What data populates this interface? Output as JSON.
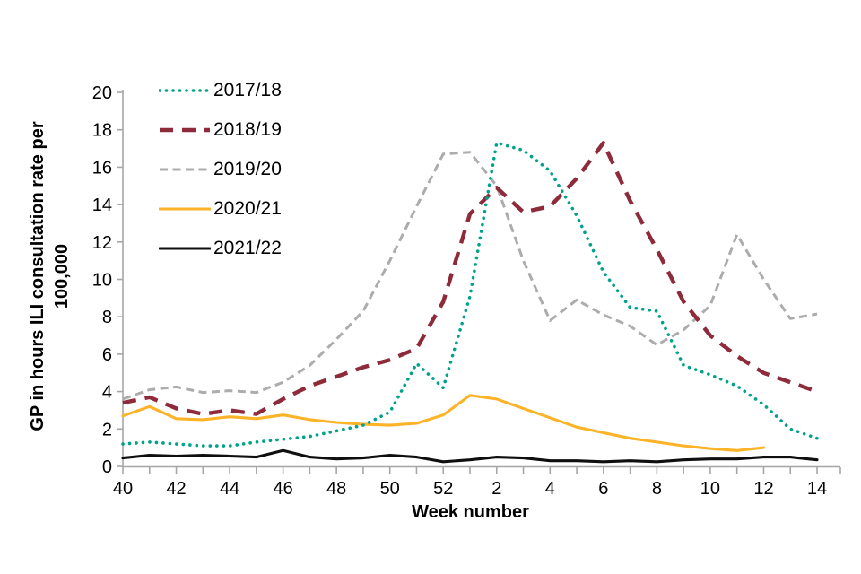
{
  "chart_data": {
    "type": "line",
    "title": "",
    "xlabel": "Week number",
    "ylabel": "GP in hours ILI consultation rate per 100,000",
    "ylabel_lines": [
      "GP in hours ILI consultation rate per",
      "100,000"
    ],
    "ylim": [
      0,
      20
    ],
    "y_ticks": [
      0,
      2,
      4,
      6,
      8,
      10,
      12,
      14,
      16,
      18,
      20
    ],
    "weeks": [
      "40",
      "41",
      "42",
      "43",
      "44",
      "45",
      "46",
      "47",
      "48",
      "49",
      "50",
      "51",
      "52",
      "1",
      "2",
      "3",
      "4",
      "5",
      "6",
      "7",
      "8",
      "9",
      "10",
      "11",
      "12",
      "13",
      "14"
    ],
    "x_tick_labels": [
      "40",
      "42",
      "44",
      "46",
      "48",
      "50",
      "52",
      "2",
      "4",
      "6",
      "8",
      "10",
      "12",
      "14"
    ],
    "grid": false,
    "legend_position": "top-left-inside",
    "axis_color": "#a6a6a6",
    "text_color": "#000000",
    "series": [
      {
        "name": "2017/18",
        "color": "#00a28a",
        "style": "dotted",
        "values": [
          1.2,
          1.3,
          1.2,
          1.1,
          1.1,
          1.3,
          1.45,
          1.6,
          1.9,
          2.2,
          2.9,
          5.5,
          4.2,
          9.1,
          17.3,
          16.9,
          15.8,
          13.4,
          10.4,
          8.5,
          8.3,
          5.4,
          4.9,
          4.3,
          3.3,
          2.0,
          1.5
        ]
      },
      {
        "name": "2018/19",
        "color": "#8e2b3b",
        "style": "dashed-long",
        "values": [
          3.4,
          3.7,
          3.1,
          2.8,
          3.0,
          2.8,
          3.6,
          4.3,
          4.8,
          5.3,
          5.7,
          6.3,
          8.8,
          13.5,
          14.9,
          13.6,
          13.9,
          15.4,
          17.3,
          14.2,
          11.6,
          8.8,
          7.0,
          5.9,
          5.0,
          4.5,
          4.0
        ]
      },
      {
        "name": "2019/20",
        "color": "#acacac",
        "style": "dashed",
        "values": [
          3.6,
          4.1,
          4.25,
          3.95,
          4.05,
          3.95,
          4.5,
          5.4,
          6.8,
          8.3,
          11.0,
          13.9,
          16.7,
          16.8,
          15.0,
          11.0,
          7.8,
          8.9,
          8.1,
          7.5,
          6.5,
          7.3,
          8.6,
          12.4,
          10.0,
          7.9,
          8.15
        ]
      },
      {
        "name": "2020/21",
        "color": "#fcb328",
        "style": "solid",
        "values": [
          2.7,
          3.2,
          2.55,
          2.5,
          2.65,
          2.55,
          2.75,
          2.5,
          2.35,
          2.25,
          2.2,
          2.3,
          2.75,
          3.8,
          3.6,
          3.1,
          2.6,
          2.1,
          1.8,
          1.5,
          1.3,
          1.1,
          0.95,
          0.85,
          1.0,
          null,
          null
        ]
      },
      {
        "name": "2021/22",
        "color": "#0f0f0f",
        "style": "solid",
        "values": [
          0.45,
          0.6,
          0.55,
          0.6,
          0.55,
          0.5,
          0.85,
          0.5,
          0.4,
          0.45,
          0.6,
          0.5,
          0.25,
          0.35,
          0.5,
          0.45,
          0.3,
          0.3,
          0.25,
          0.3,
          0.25,
          0.35,
          0.4,
          0.4,
          0.5,
          0.5,
          0.35
        ]
      }
    ]
  }
}
